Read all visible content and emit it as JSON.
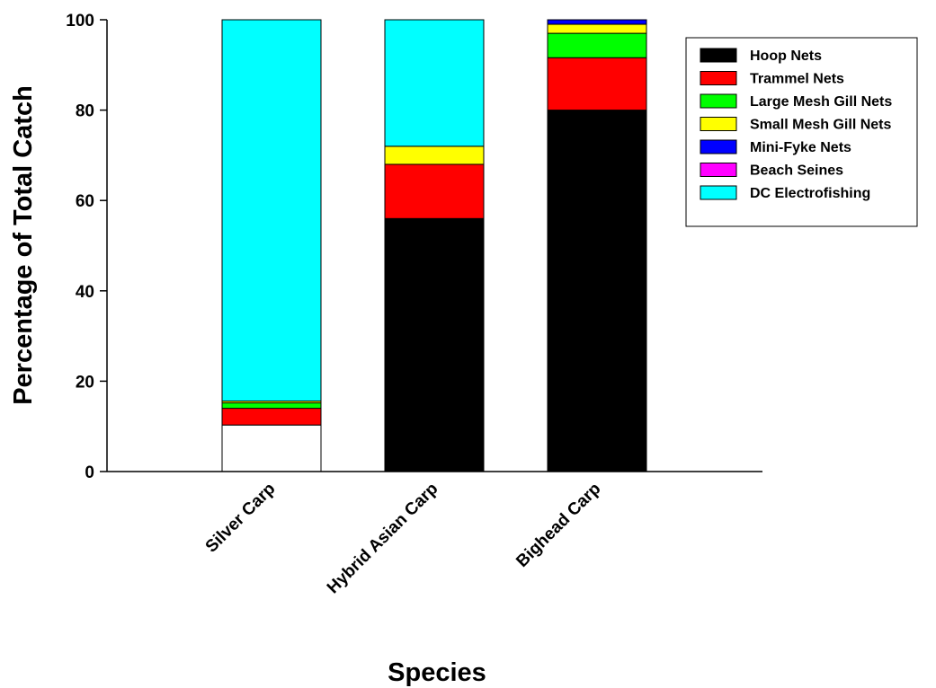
{
  "chart_data": {
    "type": "bar",
    "stacked": true,
    "categories": [
      "Silver Carp",
      "Hybrid Asian Carp",
      "Bighead Carp"
    ],
    "series": [
      {
        "name": "Hoop Nets",
        "color": "#000000",
        "values": [
          10.3,
          56.0,
          80.0
        ]
      },
      {
        "name": "Trammel Nets",
        "color": "#ff0000",
        "values": [
          3.7,
          12.0,
          11.6
        ]
      },
      {
        "name": "Large Mesh Gill Nets",
        "color": "#00ff00",
        "values": [
          1.2,
          0.0,
          5.4
        ]
      },
      {
        "name": "Small Mesh Gill Nets",
        "color": "#ffff00",
        "values": [
          0.4,
          4.0,
          2.0
        ]
      },
      {
        "name": "Mini-Fyke Nets",
        "color": "#0000ff",
        "values": [
          0.0,
          0.0,
          1.0
        ]
      },
      {
        "name": "Beach Seines",
        "color": "#ff00ff",
        "values": [
          0.0,
          0.0,
          0.0
        ]
      },
      {
        "name": "DC Electrofishing",
        "color": "#00ffff",
        "values": [
          84.4,
          28.0,
          0.0
        ]
      }
    ],
    "first_series_fill_for_first_category": "#ffffff",
    "title": "",
    "xlabel": "Species",
    "ylabel": "Percentage of Total Catch",
    "ylim": [
      0,
      100
    ],
    "yticks": [
      0,
      20,
      40,
      60,
      80,
      100
    ],
    "ytick_labels": [
      "0",
      "20",
      "40",
      "60",
      "80",
      "100"
    ],
    "grid": false,
    "legend_position": "top-right"
  }
}
